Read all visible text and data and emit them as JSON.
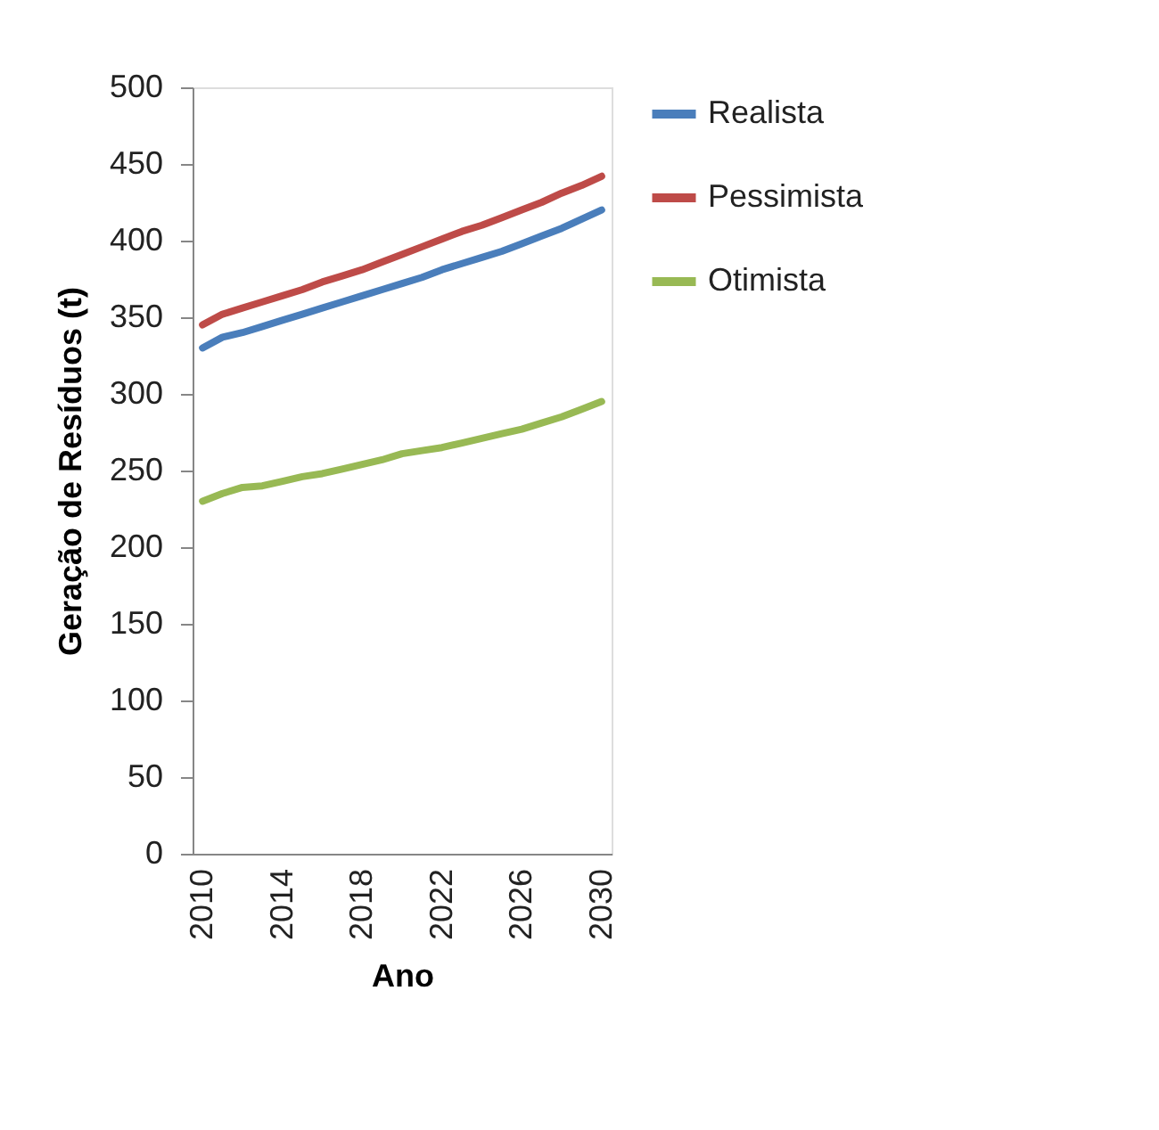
{
  "chart_data": {
    "type": "line",
    "xlabel": "Ano",
    "ylabel": "Geração de Resíduos (t)",
    "x": [
      2010,
      2011,
      2012,
      2013,
      2014,
      2015,
      2016,
      2017,
      2018,
      2019,
      2020,
      2021,
      2022,
      2023,
      2024,
      2025,
      2026,
      2027,
      2028,
      2029,
      2030
    ],
    "series": [
      {
        "name": "Realista",
        "color": "#4a7ebb",
        "values": [
          330,
          337,
          340,
          344,
          348,
          352,
          356,
          360,
          364,
          368,
          372,
          376,
          381,
          385,
          389,
          393,
          398,
          403,
          408,
          414,
          420
        ]
      },
      {
        "name": "Pessimista",
        "color": "#be4b48",
        "values": [
          345,
          352,
          356,
          360,
          364,
          368,
          373,
          377,
          381,
          386,
          391,
          396,
          401,
          406,
          410,
          415,
          420,
          425,
          431,
          436,
          442
        ]
      },
      {
        "name": "Otimista",
        "color": "#98b954",
        "values": [
          230,
          235,
          239,
          240,
          243,
          246,
          248,
          251,
          254,
          257,
          261,
          263,
          265,
          268,
          271,
          274,
          277,
          281,
          285,
          290,
          295
        ]
      }
    ],
    "xlim": [
      2009.5,
      2030.5
    ],
    "xticks": [
      2010,
      2014,
      2018,
      2022,
      2026,
      2030
    ],
    "ylim": [
      0,
      500
    ],
    "yticks": [
      0,
      50,
      100,
      150,
      200,
      250,
      300,
      350,
      400,
      450,
      500
    ],
    "grid": false,
    "legend": "right",
    "marker": "none",
    "line_style": "solid"
  }
}
